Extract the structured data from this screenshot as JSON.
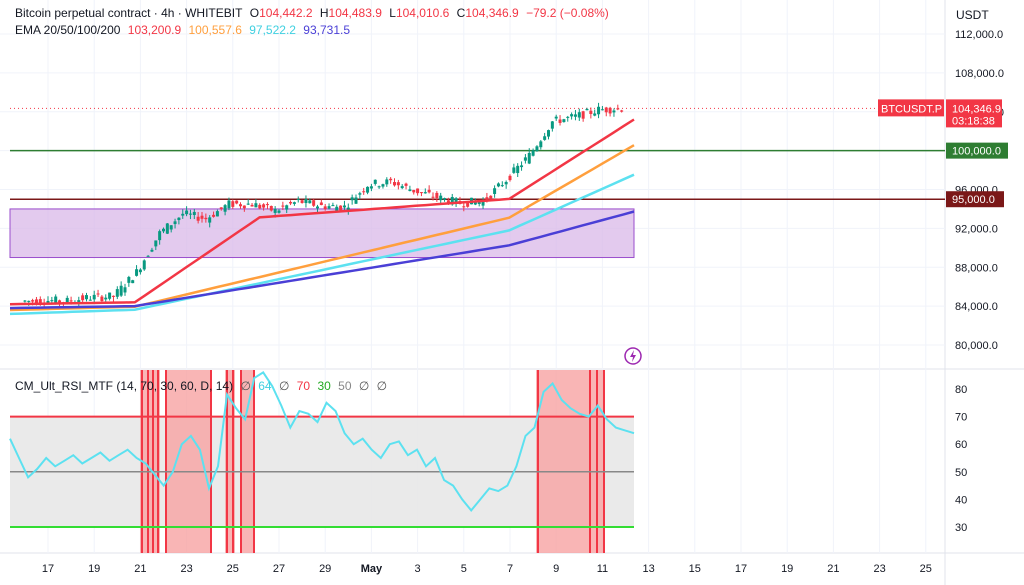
{
  "header": {
    "symbol": "Bitcoin perpetual contract · 4h · WHITEBIT",
    "o_label": "O",
    "o": "104,442.2",
    "h_label": "H",
    "h": "104,483.9",
    "l_label": "L",
    "l": "104,010.6",
    "c_label": "C",
    "c": "104,346.9",
    "change": "−79.2 (−0.08%)",
    "ema_title": "EMA 20/50/100/200",
    "ema20": "103,200.9",
    "ema50": "100,557.6",
    "ema100": "97,522.2",
    "ema200": "93,731.5"
  },
  "axis": {
    "currency": "USDT",
    "price_ticks": [
      "112,000.0",
      "108,000.0",
      "104,000.0",
      "100,000.0",
      "96,000.0",
      "92,000.0",
      "88,000.0",
      "84,000.0",
      "80,000.0"
    ],
    "rsi_ticks": [
      "80",
      "70",
      "60",
      "50",
      "40",
      "30"
    ],
    "date_ticks": [
      "17",
      "19",
      "21",
      "23",
      "25",
      "27",
      "29",
      "May",
      "3",
      "5",
      "7",
      "9",
      "11",
      "13",
      "15",
      "17",
      "19",
      "21",
      "23",
      "25"
    ]
  },
  "price_labels": {
    "ticker": "BTCUSDT.P",
    "last": "104,346.9",
    "countdown": "03:18:38",
    "level_100k": "100,000.0",
    "level_95k": "95,000.0"
  },
  "rsi_legend": {
    "name": "CM_Ult_RSI_MTF (14, 70, 30, 60, D, 14)",
    "v1": "∅",
    "v2": "64",
    "v3": "∅",
    "v4": "70",
    "v5": "30",
    "v6": "50",
    "v7": "∅",
    "v8": "∅"
  },
  "colors": {
    "ema20": "#f23645",
    "ema50": "#ff9f3d",
    "ema100": "#5ce1f0",
    "ema200": "#4a3fd6",
    "up": "#089981",
    "down": "#f23645",
    "zone": "#d9b8e8",
    "level100": "#2e7d32",
    "level95": "#7b1818",
    "rsi_line": "#5ce1f0",
    "rsi_ob": "#f23645",
    "rsi_os": "#33dd33"
  },
  "chart_data": [
    {
      "type": "candlestick",
      "title": "Bitcoin perpetual contract · 4h · WHITEBIT",
      "x_ticks": [
        "17",
        "19",
        "21",
        "23",
        "25",
        "27",
        "29",
        "May",
        "3",
        "5",
        "7",
        "9",
        "11"
      ],
      "ylim": [
        77000,
        115000
      ],
      "candles_daily_close": [
        {
          "x": "Apr 16",
          "c": 84500
        },
        {
          "x": "Apr 17",
          "c": 84600
        },
        {
          "x": "Apr 18",
          "c": 84500
        },
        {
          "x": "Apr 19",
          "c": 84900
        },
        {
          "x": "Apr 20",
          "c": 85000
        },
        {
          "x": "Apr 21",
          "c": 87500
        },
        {
          "x": "Apr 22",
          "c": 91500
        },
        {
          "x": "Apr 23",
          "c": 93500
        },
        {
          "x": "Apr 24",
          "c": 93000
        },
        {
          "x": "Apr 25",
          "c": 94500
        },
        {
          "x": "Apr 26",
          "c": 94500
        },
        {
          "x": "Apr 27",
          "c": 93800
        },
        {
          "x": "Apr 28",
          "c": 94800
        },
        {
          "x": "Apr 29",
          "c": 94300
        },
        {
          "x": "Apr 30",
          "c": 94200
        },
        {
          "x": "May 1",
          "c": 96500
        },
        {
          "x": "May 2",
          "c": 96800
        },
        {
          "x": "May 3",
          "c": 95900
        },
        {
          "x": "May 4",
          "c": 95200
        },
        {
          "x": "May 5",
          "c": 94600
        },
        {
          "x": "May 6",
          "c": 94800
        },
        {
          "x": "May 7",
          "c": 97000
        },
        {
          "x": "May 8",
          "c": 99500
        },
        {
          "x": "May 9",
          "c": 103000
        },
        {
          "x": "May 10",
          "c": 103500
        },
        {
          "x": "May 11",
          "c": 104200
        },
        {
          "x": "May 12",
          "c": 104346.9
        }
      ],
      "series": [
        {
          "name": "EMA 20",
          "last": 103200.9
        },
        {
          "name": "EMA 50",
          "last": 100557.6
        },
        {
          "name": "EMA 100",
          "last": 97522.2
        },
        {
          "name": "EMA 200",
          "last": 93731.5
        }
      ],
      "horizontal_levels": [
        100000,
        95000
      ],
      "zone": [
        89000,
        94000
      ]
    },
    {
      "type": "line",
      "title": "CM_Ult_RSI_MTF (14, 70, 30, 60, D, 14)",
      "ylim": [
        25,
        85
      ],
      "levels": [
        70,
        50,
        30
      ],
      "values": [
        62,
        55,
        48,
        51,
        55,
        52,
        54,
        56,
        53,
        55,
        57,
        54,
        56,
        58,
        55,
        53,
        49,
        45,
        50,
        60,
        63,
        58,
        44,
        52,
        78,
        73,
        69,
        84,
        86,
        81,
        74,
        66,
        72,
        71,
        68,
        75,
        72,
        64,
        60,
        62,
        58,
        55,
        60,
        61,
        56,
        58,
        52,
        55,
        47,
        45,
        40,
        36,
        40,
        44,
        43,
        45,
        52,
        63,
        66,
        79,
        82,
        76,
        73,
        71,
        70,
        74,
        69,
        66,
        65,
        64
      ],
      "last": 64
    }
  ]
}
